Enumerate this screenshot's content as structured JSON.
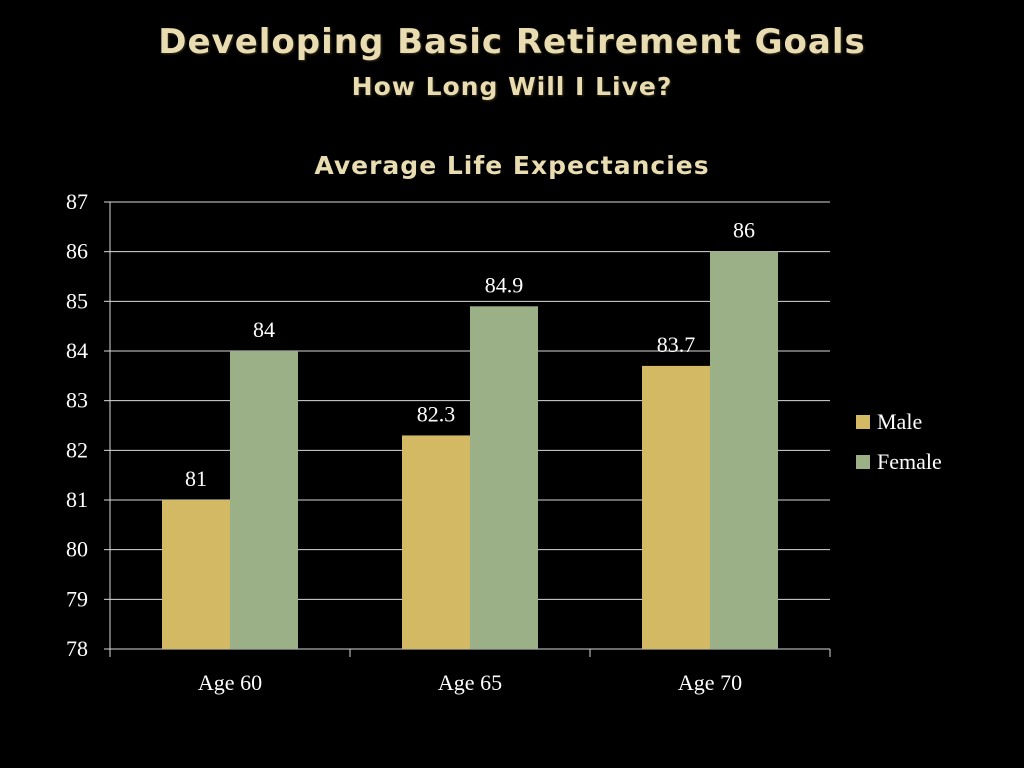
{
  "slide": {
    "title": "Developing Basic Retirement Goals",
    "subtitle": "How Long Will I Live?"
  },
  "colors": {
    "background": "#000000",
    "title": "#e8dcb0",
    "male": "#d4b965",
    "female": "#9cb087",
    "gridline": "#d9d9d9",
    "text": "#ffffff"
  },
  "chart_data": {
    "type": "bar",
    "title": "Average Life Expectancies",
    "xlabel": "",
    "ylabel": "",
    "categories": [
      "Age 60",
      "Age 65",
      "Age 70"
    ],
    "series": [
      {
        "name": "Male",
        "values": [
          81,
          82.3,
          83.7
        ]
      },
      {
        "name": "Female",
        "values": [
          84,
          84.9,
          86
        ]
      }
    ],
    "data_labels": [
      [
        "81",
        "82.3",
        "83.7"
      ],
      [
        "84",
        "84.9",
        "86"
      ]
    ],
    "ylim": [
      78,
      87
    ],
    "y_ticks": [
      78,
      79,
      80,
      81,
      82,
      83,
      84,
      85,
      86,
      87
    ],
    "grid": true,
    "legend_position": "right"
  }
}
